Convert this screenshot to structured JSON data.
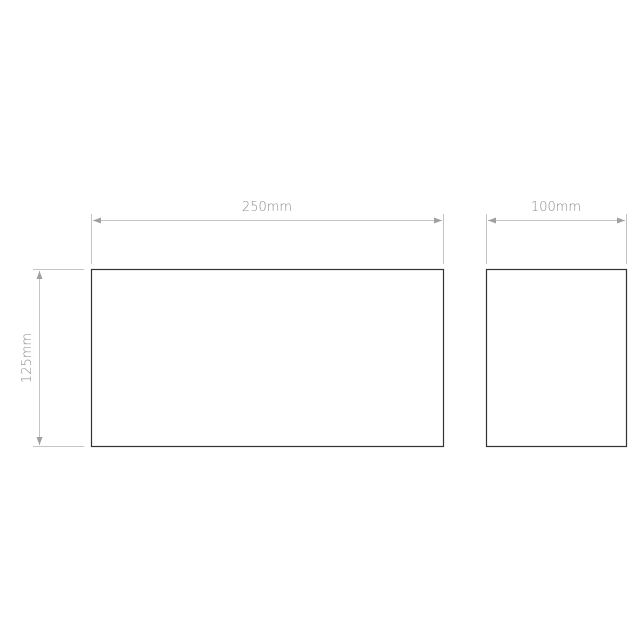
{
  "dimensions": {
    "front_width": "250mm",
    "side_width": "100mm",
    "height": "125mm"
  },
  "colors": {
    "outline": "#333333",
    "dimension_line": "#b5b5b5",
    "dimension_text": "#8a8a8a"
  }
}
